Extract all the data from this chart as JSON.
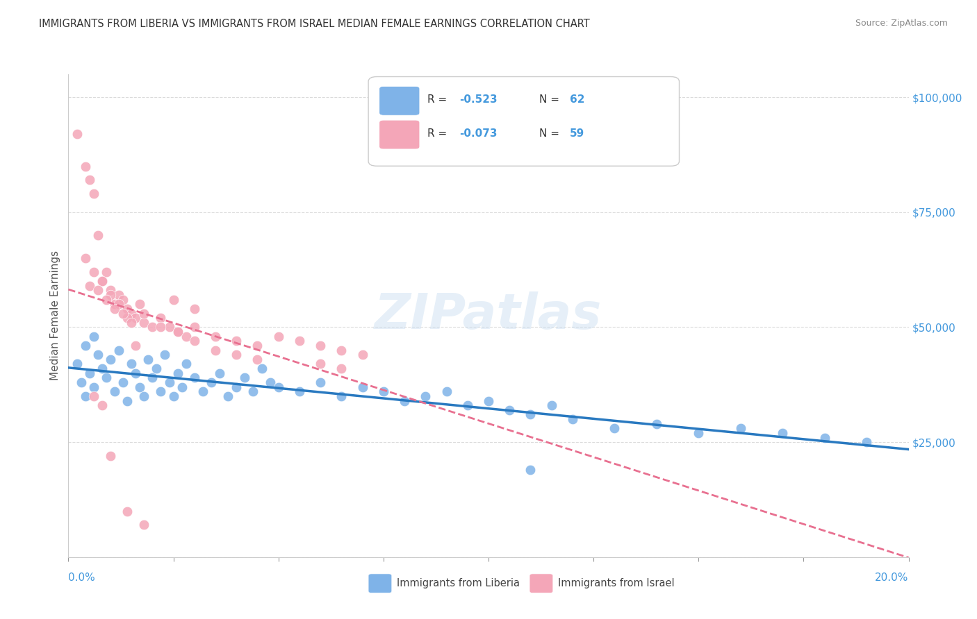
{
  "title": "IMMIGRANTS FROM LIBERIA VS IMMIGRANTS FROM ISRAEL MEDIAN FEMALE EARNINGS CORRELATION CHART",
  "source": "Source: ZipAtlas.com",
  "ylabel": "Median Female Earnings",
  "xmin": 0.0,
  "xmax": 0.2,
  "ymin": 0,
  "ymax": 105000,
  "yticks": [
    0,
    25000,
    50000,
    75000,
    100000
  ],
  "ytick_labels": [
    "",
    "$25,000",
    "$50,000",
    "$75,000",
    "$100,000"
  ],
  "xticks": [
    0.0,
    0.025,
    0.05,
    0.075,
    0.1,
    0.125,
    0.15,
    0.175,
    0.2
  ],
  "color_liberia": "#7fb3e8",
  "color_israel": "#f4a6b8",
  "color_axis_label": "#4499dd",
  "color_title": "#333333",
  "background_color": "#ffffff",
  "watermark": "ZIPatlas",
  "liberia_x": [
    0.002,
    0.003,
    0.004,
    0.005,
    0.006,
    0.007,
    0.008,
    0.009,
    0.01,
    0.011,
    0.012,
    0.013,
    0.014,
    0.015,
    0.016,
    0.017,
    0.018,
    0.019,
    0.02,
    0.021,
    0.022,
    0.023,
    0.024,
    0.025,
    0.026,
    0.027,
    0.028,
    0.03,
    0.032,
    0.034,
    0.036,
    0.038,
    0.04,
    0.042,
    0.044,
    0.046,
    0.048,
    0.05,
    0.055,
    0.06,
    0.065,
    0.07,
    0.075,
    0.08,
    0.085,
    0.09,
    0.095,
    0.1,
    0.105,
    0.11,
    0.115,
    0.12,
    0.13,
    0.14,
    0.15,
    0.16,
    0.17,
    0.18,
    0.19,
    0.004,
    0.006,
    0.11
  ],
  "liberia_y": [
    42000,
    38000,
    35000,
    40000,
    37000,
    44000,
    41000,
    39000,
    43000,
    36000,
    45000,
    38000,
    34000,
    42000,
    40000,
    37000,
    35000,
    43000,
    39000,
    41000,
    36000,
    44000,
    38000,
    35000,
    40000,
    37000,
    42000,
    39000,
    36000,
    38000,
    40000,
    35000,
    37000,
    39000,
    36000,
    41000,
    38000,
    37000,
    36000,
    38000,
    35000,
    37000,
    36000,
    34000,
    35000,
    36000,
    33000,
    34000,
    32000,
    31000,
    33000,
    30000,
    28000,
    29000,
    27000,
    28000,
    27000,
    26000,
    25000,
    46000,
    48000,
    19000
  ],
  "israel_x": [
    0.002,
    0.004,
    0.005,
    0.006,
    0.007,
    0.008,
    0.009,
    0.01,
    0.011,
    0.012,
    0.013,
    0.014,
    0.015,
    0.016,
    0.017,
    0.018,
    0.02,
    0.022,
    0.024,
    0.026,
    0.028,
    0.03,
    0.035,
    0.04,
    0.045,
    0.05,
    0.055,
    0.06,
    0.065,
    0.07,
    0.03,
    0.025,
    0.018,
    0.01,
    0.012,
    0.014,
    0.016,
    0.008,
    0.006,
    0.004,
    0.022,
    0.026,
    0.03,
    0.035,
    0.04,
    0.045,
    0.06,
    0.065,
    0.005,
    0.007,
    0.009,
    0.011,
    0.013,
    0.015,
    0.006,
    0.008,
    0.01,
    0.014,
    0.018
  ],
  "israel_y": [
    92000,
    85000,
    82000,
    79000,
    70000,
    60000,
    62000,
    58000,
    55000,
    57000,
    56000,
    54000,
    53000,
    52000,
    55000,
    51000,
    50000,
    52000,
    50000,
    49000,
    48000,
    50000,
    48000,
    47000,
    46000,
    48000,
    47000,
    46000,
    45000,
    44000,
    54000,
    56000,
    53000,
    57000,
    55000,
    52000,
    46000,
    60000,
    62000,
    65000,
    50000,
    49000,
    47000,
    45000,
    44000,
    43000,
    42000,
    41000,
    59000,
    58000,
    56000,
    54000,
    53000,
    51000,
    35000,
    33000,
    22000,
    10000,
    7000
  ]
}
